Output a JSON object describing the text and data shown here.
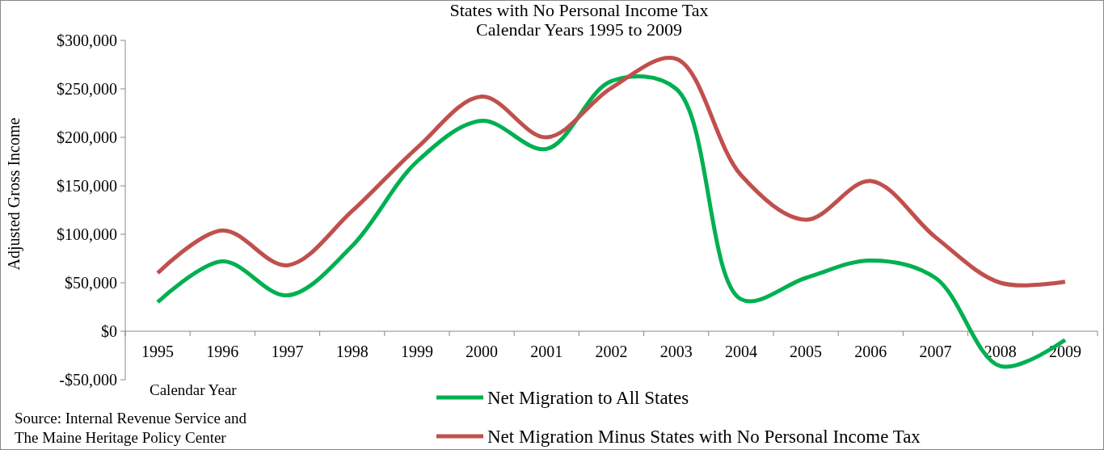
{
  "chart_data": {
    "type": "line",
    "title": "States with No Personal Income Tax\nCalendar Years 1995 to 2009",
    "xlabel": "Calendar Year",
    "ylabel": "Adjusted Gross Income",
    "categories": [
      "1995",
      "1996",
      "1997",
      "1998",
      "1999",
      "2000",
      "2001",
      "2002",
      "2003",
      "2004",
      "2005",
      "2006",
      "2007",
      "2008",
      "2009"
    ],
    "series": [
      {
        "name": "Net Migration to All States",
        "color": "#00b050",
        "values": [
          30000,
          72000,
          37000,
          88000,
          175000,
          217000,
          188000,
          258000,
          250000,
          33000,
          55000,
          73000,
          55000,
          -36000,
          -9000
        ]
      },
      {
        "name": "Net Migration Minus States with No Personal Income Tax",
        "color": "#c0504d",
        "values": [
          60000,
          104000,
          68000,
          124000,
          189000,
          242000,
          200000,
          251000,
          281000,
          161000,
          115000,
          155000,
          97000,
          50000,
          51000
        ]
      }
    ],
    "ylim": [
      -50000,
      300000
    ],
    "yticks": [
      {
        "value": -50000,
        "label": "-$50,000"
      },
      {
        "value": 0,
        "label": "$0"
      },
      {
        "value": 50000,
        "label": "$50,000"
      },
      {
        "value": 100000,
        "label": "$100,000"
      },
      {
        "value": 150000,
        "label": "$150,000"
      },
      {
        "value": 200000,
        "label": "$200,000"
      },
      {
        "value": 250000,
        "label": "$250,000"
      },
      {
        "value": 300000,
        "label": "$300,000"
      }
    ],
    "grid": false,
    "legend": "bottom",
    "marker": "none",
    "line_style": "solid",
    "annotations": [
      "Source: Internal Revenue Service and\nThe Maine Heritage Policy Center"
    ]
  }
}
